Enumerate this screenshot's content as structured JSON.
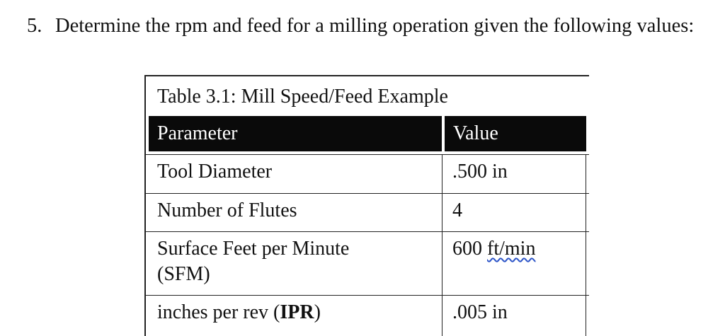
{
  "question": {
    "number": "5.",
    "text": "Determine the rpm and feed for a milling operation given the following values:"
  },
  "table": {
    "caption": "Table 3.1: Mill Speed/Feed Example",
    "headers": {
      "parameter": "Parameter",
      "value": "Value"
    },
    "rows": [
      {
        "parameter": "Tool Diameter",
        "value": ".500 in"
      },
      {
        "parameter": "Number of Flutes",
        "value": "4"
      },
      {
        "parameter": "Surface Feet per Minute (SFM)",
        "value_number": "600",
        "value_unit": "ft/min"
      },
      {
        "parameter_prefix": "inches per rev (",
        "parameter_bold": "IPR",
        "parameter_suffix": ")",
        "value": ".005 in"
      }
    ]
  }
}
